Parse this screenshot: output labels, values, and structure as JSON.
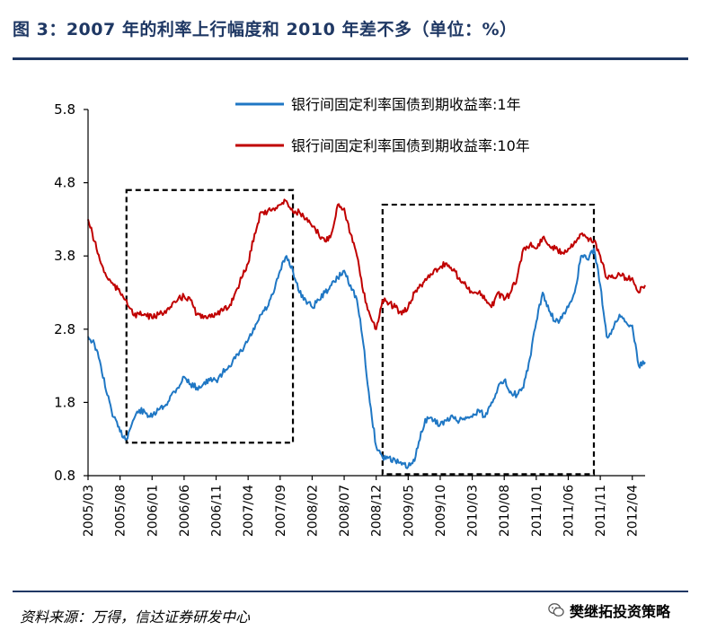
{
  "header": {
    "title": "图 3：2007 年的利率上行幅度和 2010 年差不多（单位：%）"
  },
  "footer": {
    "source": "资料来源：万得，信达证券研发中心",
    "brand": "樊继拓投资策略",
    "brand_icon": "wechat-icon"
  },
  "colors": {
    "series_1y": "#1f77c4",
    "series_10y": "#c00000",
    "accent": "#1f3864"
  },
  "chart_data": {
    "type": "line",
    "title": "",
    "xlabel": "",
    "ylabel": "",
    "ylim": [
      0.8,
      5.8
    ],
    "yticks": [
      "5.8",
      "4.8",
      "3.8",
      "2.8",
      "1.8",
      "0.8"
    ],
    "xlim": [
      "2005-03",
      "2012-06"
    ],
    "xticks": [
      "2005/03",
      "2005/08",
      "2006/01",
      "2006/06",
      "2006/11",
      "2007/04",
      "2007/09",
      "2008/02",
      "2008/07",
      "2008/12",
      "2009/05",
      "2009/10",
      "2010/03",
      "2010/08",
      "2011/01",
      "2011/06",
      "2011/11",
      "2012/04"
    ],
    "legend_position": "top-right",
    "series": [
      {
        "name": "银行间固定利率国债到期收益率:1年",
        "points": [
          [
            "2005-03",
            2.7
          ],
          [
            "2005-04",
            2.6
          ],
          [
            "2005-05",
            2.3
          ],
          [
            "2005-06",
            1.9
          ],
          [
            "2005-07",
            1.6
          ],
          [
            "2005-08",
            1.4
          ],
          [
            "2005-09",
            1.3
          ],
          [
            "2005-10",
            1.55
          ],
          [
            "2005-11",
            1.7
          ],
          [
            "2005-12",
            1.65
          ],
          [
            "2006-01",
            1.6
          ],
          [
            "2006-02",
            1.7
          ],
          [
            "2006-03",
            1.75
          ],
          [
            "2006-04",
            1.9
          ],
          [
            "2006-05",
            2.0
          ],
          [
            "2006-06",
            2.15
          ],
          [
            "2006-07",
            2.05
          ],
          [
            "2006-08",
            2.0
          ],
          [
            "2006-09",
            2.05
          ],
          [
            "2006-10",
            2.1
          ],
          [
            "2006-11",
            2.1
          ],
          [
            "2006-12",
            2.2
          ],
          [
            "2007-01",
            2.3
          ],
          [
            "2007-02",
            2.4
          ],
          [
            "2007-03",
            2.5
          ],
          [
            "2007-04",
            2.65
          ],
          [
            "2007-05",
            2.8
          ],
          [
            "2007-06",
            3.0
          ],
          [
            "2007-07",
            3.1
          ],
          [
            "2007-08",
            3.3
          ],
          [
            "2007-09",
            3.6
          ],
          [
            "2007-10",
            3.8
          ],
          [
            "2007-11",
            3.6
          ],
          [
            "2007-12",
            3.3
          ],
          [
            "2008-01",
            3.2
          ],
          [
            "2008-02",
            3.1
          ],
          [
            "2008-03",
            3.2
          ],
          [
            "2008-04",
            3.3
          ],
          [
            "2008-05",
            3.4
          ],
          [
            "2008-06",
            3.5
          ],
          [
            "2008-07",
            3.6
          ],
          [
            "2008-08",
            3.4
          ],
          [
            "2008-09",
            3.2
          ],
          [
            "2008-10",
            2.6
          ],
          [
            "2008-11",
            1.8
          ],
          [
            "2008-12",
            1.2
          ],
          [
            "2009-01",
            1.05
          ],
          [
            "2009-02",
            1.05
          ],
          [
            "2009-03",
            1.0
          ],
          [
            "2009-04",
            0.95
          ],
          [
            "2009-05",
            0.92
          ],
          [
            "2009-06",
            1.0
          ],
          [
            "2009-07",
            1.4
          ],
          [
            "2009-08",
            1.6
          ],
          [
            "2009-09",
            1.55
          ],
          [
            "2009-10",
            1.5
          ],
          [
            "2009-11",
            1.55
          ],
          [
            "2009-12",
            1.6
          ],
          [
            "2010-01",
            1.55
          ],
          [
            "2010-02",
            1.6
          ],
          [
            "2010-03",
            1.6
          ],
          [
            "2010-04",
            1.7
          ],
          [
            "2010-05",
            1.6
          ],
          [
            "2010-06",
            1.8
          ],
          [
            "2010-07",
            2.0
          ],
          [
            "2010-08",
            2.1
          ],
          [
            "2010-09",
            1.95
          ],
          [
            "2010-10",
            1.9
          ],
          [
            "2010-11",
            2.0
          ],
          [
            "2010-12",
            2.4
          ],
          [
            "2011-01",
            2.9
          ],
          [
            "2011-02",
            3.3
          ],
          [
            "2011-03",
            3.05
          ],
          [
            "2011-04",
            2.9
          ],
          [
            "2011-05",
            2.95
          ],
          [
            "2011-06",
            3.1
          ],
          [
            "2011-07",
            3.3
          ],
          [
            "2011-08",
            3.8
          ],
          [
            "2011-09",
            3.75
          ],
          [
            "2011-10",
            3.9
          ],
          [
            "2011-11",
            3.4
          ],
          [
            "2011-12",
            2.7
          ],
          [
            "2012-01",
            2.8
          ],
          [
            "2012-02",
            3.0
          ],
          [
            "2012-03",
            2.9
          ],
          [
            "2012-04",
            2.85
          ],
          [
            "2012-05",
            2.3
          ],
          [
            "2012-06",
            2.35
          ]
        ]
      },
      {
        "name": "银行间固定利率国债到期收益率:10年",
        "points": [
          [
            "2005-03",
            4.3
          ],
          [
            "2005-04",
            4.0
          ],
          [
            "2005-05",
            3.7
          ],
          [
            "2005-06",
            3.5
          ],
          [
            "2005-07",
            3.4
          ],
          [
            "2005-08",
            3.3
          ],
          [
            "2005-09",
            3.2
          ],
          [
            "2005-10",
            3.0
          ],
          [
            "2005-11",
            3.0
          ],
          [
            "2005-12",
            3.0
          ],
          [
            "2006-01",
            2.95
          ],
          [
            "2006-02",
            3.0
          ],
          [
            "2006-03",
            3.05
          ],
          [
            "2006-04",
            3.1
          ],
          [
            "2006-05",
            3.2
          ],
          [
            "2006-06",
            3.25
          ],
          [
            "2006-07",
            3.2
          ],
          [
            "2006-08",
            3.0
          ],
          [
            "2006-09",
            2.95
          ],
          [
            "2006-10",
            3.0
          ],
          [
            "2006-11",
            3.0
          ],
          [
            "2006-12",
            3.05
          ],
          [
            "2007-01",
            3.1
          ],
          [
            "2007-02",
            3.3
          ],
          [
            "2007-03",
            3.5
          ],
          [
            "2007-04",
            3.7
          ],
          [
            "2007-05",
            4.1
          ],
          [
            "2007-06",
            4.4
          ],
          [
            "2007-07",
            4.4
          ],
          [
            "2007-08",
            4.45
          ],
          [
            "2007-09",
            4.5
          ],
          [
            "2007-10",
            4.55
          ],
          [
            "2007-11",
            4.4
          ],
          [
            "2007-12",
            4.4
          ],
          [
            "2008-01",
            4.3
          ],
          [
            "2008-02",
            4.2
          ],
          [
            "2008-03",
            4.1
          ],
          [
            "2008-04",
            4.0
          ],
          [
            "2008-05",
            4.1
          ],
          [
            "2008-06",
            4.5
          ],
          [
            "2008-07",
            4.45
          ],
          [
            "2008-08",
            4.1
          ],
          [
            "2008-09",
            3.8
          ],
          [
            "2008-10",
            3.3
          ],
          [
            "2008-11",
            3.0
          ],
          [
            "2008-12",
            2.8
          ],
          [
            "2009-01",
            3.2
          ],
          [
            "2009-02",
            3.15
          ],
          [
            "2009-03",
            3.1
          ],
          [
            "2009-04",
            3.0
          ],
          [
            "2009-05",
            3.1
          ],
          [
            "2009-06",
            3.3
          ],
          [
            "2009-07",
            3.4
          ],
          [
            "2009-08",
            3.5
          ],
          [
            "2009-09",
            3.6
          ],
          [
            "2009-10",
            3.65
          ],
          [
            "2009-11",
            3.7
          ],
          [
            "2009-12",
            3.6
          ],
          [
            "2010-01",
            3.5
          ],
          [
            "2010-02",
            3.4
          ],
          [
            "2010-03",
            3.3
          ],
          [
            "2010-04",
            3.3
          ],
          [
            "2010-05",
            3.2
          ],
          [
            "2010-06",
            3.1
          ],
          [
            "2010-07",
            3.3
          ],
          [
            "2010-08",
            3.2
          ],
          [
            "2010-09",
            3.3
          ],
          [
            "2010-10",
            3.5
          ],
          [
            "2010-11",
            3.9
          ],
          [
            "2010-12",
            3.95
          ],
          [
            "2011-01",
            3.9
          ],
          [
            "2011-02",
            4.05
          ],
          [
            "2011-03",
            3.95
          ],
          [
            "2011-04",
            3.9
          ],
          [
            "2011-05",
            3.85
          ],
          [
            "2011-06",
            3.9
          ],
          [
            "2011-07",
            4.0
          ],
          [
            "2011-08",
            4.1
          ],
          [
            "2011-09",
            4.05
          ],
          [
            "2011-10",
            4.0
          ],
          [
            "2011-11",
            3.8
          ],
          [
            "2011-12",
            3.5
          ],
          [
            "2012-01",
            3.5
          ],
          [
            "2012-02",
            3.55
          ],
          [
            "2012-03",
            3.5
          ],
          [
            "2012-04",
            3.5
          ],
          [
            "2012-05",
            3.3
          ],
          [
            "2012-06",
            3.4
          ]
        ]
      }
    ],
    "highlight_boxes": [
      {
        "x_start": "2005-09",
        "x_end": "2007-11",
        "y_start": 1.25,
        "y_end": 4.7
      },
      {
        "x_start": "2009-01",
        "x_end": "2011-10",
        "y_start": 0.82,
        "y_end": 4.5
      }
    ]
  }
}
